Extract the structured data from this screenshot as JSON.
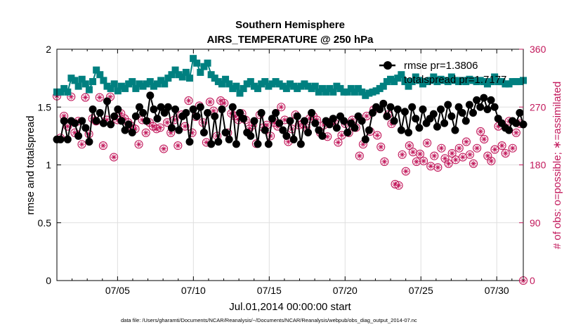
{
  "chart_data": {
    "type": "line",
    "title": [
      "Southern Hemisphere",
      "AIRS_TEMPERATURE @ 250 hPa"
    ],
    "xlabel": "Jul.01,2014 00:00:00 start",
    "ylabel": "rmse and totalspread",
    "ylabel_right": "# of obs: o=possible; ∗=assimilated",
    "xlim": [
      "2014-07-01",
      "2014-07-31 18:00"
    ],
    "ylim": [
      0,
      2
    ],
    "ylim_right": [
      0,
      360
    ],
    "x_tick_labels": [
      "07/05",
      "07/10",
      "07/15",
      "07/20",
      "07/25",
      "07/30"
    ],
    "x_tick_days": [
      5,
      10,
      15,
      20,
      25,
      30
    ],
    "y_tick_labels": [
      "0",
      "0.5",
      "1",
      "1.5",
      "2"
    ],
    "y_ticks": [
      0,
      0.5,
      1,
      1.5,
      2
    ],
    "y_right_tick_labels": [
      "0",
      "90",
      "180",
      "270",
      "360"
    ],
    "y_right_ticks": [
      0,
      90,
      180,
      270,
      360
    ],
    "grid": true,
    "legend_position": "top-right",
    "series": [
      {
        "name": "rmse pr=1.3806",
        "axis": "left",
        "color": "#000000",
        "marker": "filled-circle",
        "values": [
          1.22,
          1.22,
          1.38,
          1.22,
          1.38,
          1.36,
          1.25,
          1.38,
          1.32,
          1.2,
          1.48,
          1.38,
          1.45,
          1.36,
          1.55,
          1.35,
          1.42,
          1.48,
          1.38,
          1.3,
          1.35,
          1.28,
          1.42,
          1.5,
          1.45,
          1.38,
          1.6,
          1.48,
          1.4,
          1.5,
          1.45,
          1.5,
          1.32,
          1.48,
          1.3,
          1.42,
          1.45,
          1.2,
          1.48,
          1.42,
          1.5,
          1.28,
          1.45,
          1.18,
          1.42,
          1.2,
          1.48,
          1.28,
          1.22,
          1.5,
          1.18,
          1.45,
          1.4,
          1.28,
          1.25,
          1.38,
          1.18,
          1.45,
          1.3,
          1.18,
          1.4,
          1.45,
          1.36,
          1.3,
          1.25,
          1.38,
          1.22,
          1.42,
          1.18,
          1.38,
          1.28,
          1.45,
          1.36,
          1.3,
          1.25,
          1.38,
          1.35,
          1.4,
          1.32,
          1.42,
          1.38,
          1.28,
          1.36,
          1.32,
          1.42,
          1.38,
          1.22,
          1.3,
          1.45,
          1.5,
          1.48,
          1.53,
          1.42,
          1.5,
          1.38,
          1.48,
          1.3,
          1.46,
          1.28,
          1.5,
          1.4,
          1.32,
          1.48,
          1.36,
          1.4,
          1.44,
          1.33,
          1.48,
          1.36,
          1.52,
          1.42,
          1.3,
          1.5,
          1.45,
          1.38,
          1.52,
          1.45,
          1.56,
          1.5,
          1.58,
          1.48,
          1.56,
          1.5,
          1.4,
          1.36,
          1.32,
          1.3,
          1.38,
          1.36,
          1.45,
          1.35
        ]
      },
      {
        "name": "totalspread pr=1.7177",
        "axis": "left",
        "color": "#008080",
        "marker": "filled-square",
        "values": [
          1.63,
          1.63,
          1.66,
          1.63,
          1.75,
          1.73,
          1.68,
          1.74,
          1.7,
          1.65,
          1.72,
          1.82,
          1.78,
          1.73,
          1.68,
          1.66,
          1.7,
          1.64,
          1.68,
          1.66,
          1.7,
          1.72,
          1.66,
          1.7,
          1.68,
          1.7,
          1.72,
          1.68,
          1.7,
          1.73,
          1.7,
          1.75,
          1.78,
          1.82,
          1.78,
          1.76,
          1.8,
          1.75,
          1.92,
          1.88,
          1.8,
          1.85,
          1.88,
          1.78,
          1.75,
          1.72,
          1.7,
          1.74,
          1.7,
          1.66,
          1.68,
          1.62,
          1.66,
          1.7,
          1.72,
          1.68,
          1.66,
          1.7,
          1.72,
          1.68,
          1.7,
          1.72,
          1.7,
          1.68,
          1.66,
          1.7,
          1.68,
          1.66,
          1.68,
          1.7,
          1.68,
          1.66,
          1.68,
          1.63,
          1.66,
          1.63,
          1.66,
          1.63,
          1.68,
          1.66,
          1.63,
          1.63,
          1.66,
          1.63,
          1.66,
          1.63,
          1.6,
          1.62,
          1.63,
          1.64,
          1.66,
          1.68,
          1.72,
          1.74,
          1.72,
          1.75,
          1.78,
          1.72,
          1.68,
          1.72,
          1.76,
          1.73,
          1.7,
          1.72,
          1.73,
          1.76,
          1.72,
          1.74,
          1.73,
          1.72,
          1.76,
          1.73,
          1.72,
          1.73,
          1.72,
          1.74,
          1.73,
          1.72,
          1.73,
          1.72,
          1.7,
          1.72,
          1.76,
          1.72,
          1.72,
          1.7,
          1.7,
          1.72,
          1.72,
          1.72,
          1.73
        ]
      },
      {
        "name": "possible",
        "axis": "right",
        "color": "#c2185b",
        "marker": "open-circle",
        "values": [
          287,
          222,
          256,
          240,
          286,
          230,
          248,
          212,
          285,
          228,
          252,
          248,
          285,
          210,
          250,
          286,
          192,
          250,
          260,
          252,
          246,
          240,
          236,
          212,
          250,
          230,
          246,
          240,
          236,
          238,
          205,
          246,
          230,
          250,
          210,
          258,
          240,
          280,
          230,
          255,
          272,
          246,
          215,
          278,
          264,
          225,
          280,
          276,
          230,
          260,
          256,
          250,
          260,
          250,
          236,
          242,
          213,
          258,
          238,
          242,
          225,
          246,
          240,
          270,
          250,
          216,
          236,
          258,
          242,
          244,
          238,
          252,
          256,
          250,
          230,
          242,
          224,
          247,
          245,
          215,
          226,
          244,
          230,
          250,
          238,
          194,
          212,
          256,
          232,
          266,
          226,
          208,
          185,
          258,
          244,
          150,
          148,
          196,
          170,
          210,
          200,
          185,
          197,
          186,
          214,
          178,
          194,
          176,
          206,
          190,
          182,
          198,
          188,
          206,
          192,
          216,
          196,
          182,
          206,
          232,
          220,
          194,
          186,
          204,
          240,
          210,
          198,
          248,
          206,
          230,
          244,
          0
        ]
      },
      {
        "name": "assimilated",
        "axis": "right",
        "color": "#c2185b",
        "marker": "asterisk",
        "values": [
          287,
          222,
          256,
          240,
          286,
          230,
          248,
          212,
          285,
          228,
          252,
          248,
          285,
          210,
          250,
          286,
          192,
          250,
          260,
          252,
          246,
          240,
          236,
          212,
          250,
          230,
          246,
          240,
          236,
          238,
          205,
          246,
          230,
          250,
          210,
          258,
          240,
          280,
          230,
          255,
          272,
          246,
          215,
          278,
          264,
          225,
          280,
          276,
          230,
          260,
          256,
          250,
          260,
          250,
          236,
          242,
          213,
          258,
          238,
          242,
          225,
          246,
          240,
          270,
          250,
          216,
          236,
          258,
          242,
          244,
          238,
          252,
          256,
          250,
          230,
          242,
          224,
          247,
          245,
          215,
          226,
          244,
          230,
          250,
          238,
          194,
          212,
          256,
          232,
          266,
          226,
          208,
          185,
          258,
          244,
          150,
          148,
          196,
          170,
          210,
          200,
          185,
          197,
          186,
          214,
          178,
          194,
          176,
          206,
          190,
          182,
          198,
          188,
          206,
          192,
          216,
          196,
          182,
          206,
          232,
          220,
          194,
          186,
          204,
          240,
          210,
          198,
          248,
          206,
          230,
          244,
          0
        ]
      }
    ]
  },
  "footer": "data file: /Users/gharamti/Documents/NCAR/Reanalysis/~/Documents/NCAR/Reanalysis/webpub/obs_diag_output_2014-07.nc"
}
